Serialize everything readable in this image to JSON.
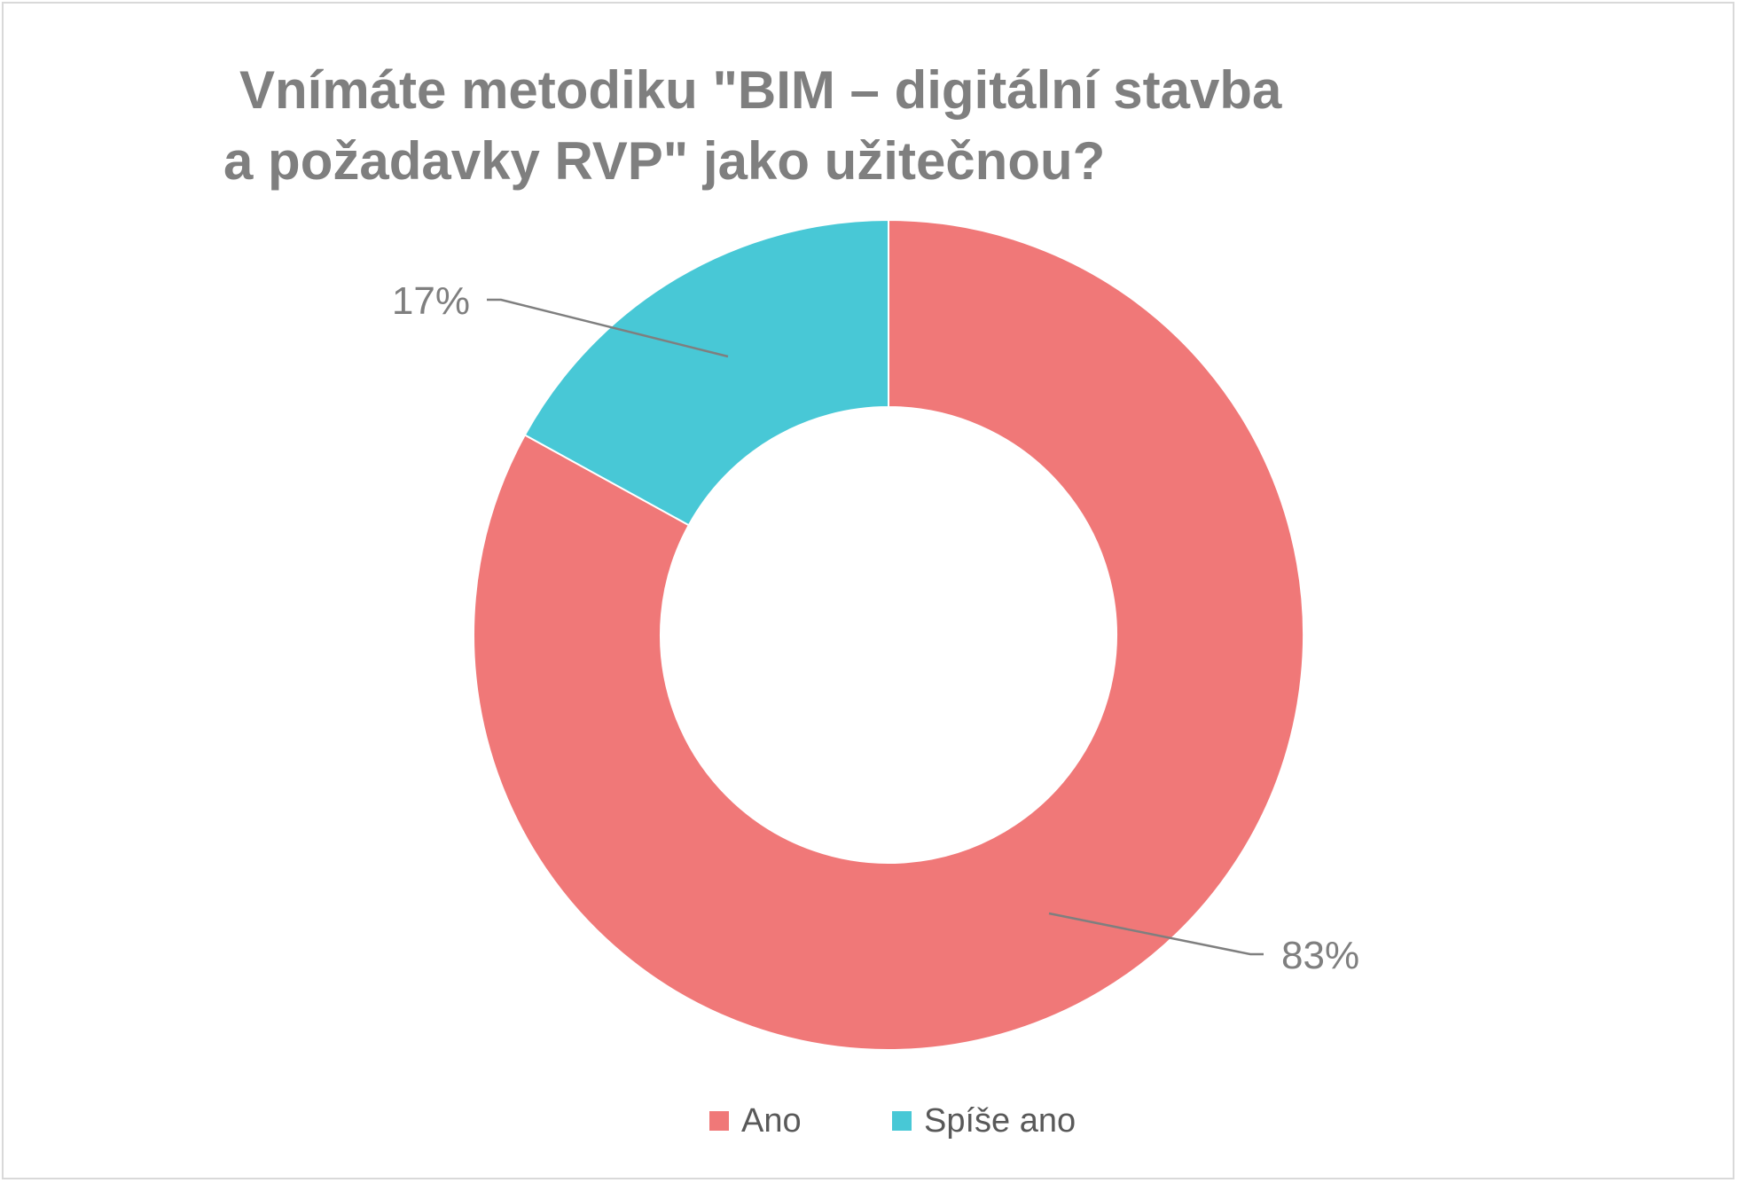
{
  "chart_data": {
    "type": "pie",
    "variant": "doughnut",
    "title_lines": [
      "Vnímáte metodiku \"BIM – digitální stavba",
      "a požadavky RVP\" jako užitečnou?"
    ],
    "series": [
      {
        "name": "Ano",
        "value": 83,
        "label": "83%",
        "color": "#F07878"
      },
      {
        "name": "Spíše ano",
        "value": 17,
        "label": "17%",
        "color": "#48C8D6"
      }
    ],
    "legend_position": "bottom",
    "data_label_color": "#7f7f7f",
    "leader_line_color": "#7f7f7f"
  }
}
